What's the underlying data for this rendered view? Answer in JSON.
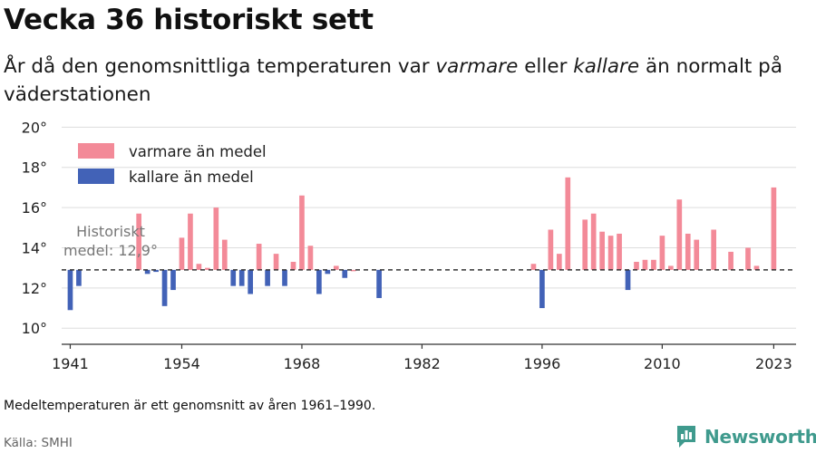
{
  "title": "Vecka 36 historiskt sett",
  "subtitle": {
    "part1": "År då den genomsnittliga temperaturen var ",
    "warm_word": "varmare",
    "part2": " eller ",
    "cold_word": "kallare",
    "part3": " än normalt på väderstationen"
  },
  "footnote": "Medeltemperaturen är ett genomsnitt av åren 1961–1990.",
  "source": "Källa: SMHI",
  "brand": "Newsworthy",
  "colors": {
    "warm": "#f38a98",
    "cold": "#4262b7",
    "reference": "#333333",
    "grid": "#dddddd"
  },
  "chart_data": {
    "type": "bar",
    "baseline": 12.9,
    "reference_label": [
      "Historiskt",
      "medel: 12,9°"
    ],
    "ylim": [
      9.2,
      20.6
    ],
    "yticks": [
      10,
      12,
      14,
      16,
      18,
      20
    ],
    "ytick_labels": [
      "10°",
      "12°",
      "14°",
      "16°",
      "18°",
      "20°"
    ],
    "xlim": [
      1940.0,
      2025.6
    ],
    "xticks": [
      1941,
      1954,
      1968,
      1982,
      1996,
      2010,
      2023
    ],
    "xtick_labels": [
      "1941",
      "1954",
      "1968",
      "1982",
      "1996",
      "2010",
      "2023"
    ],
    "grid": true,
    "legend_position": "top-left",
    "legend": [
      {
        "label": "varmare än medel",
        "color": "#f38a98"
      },
      {
        "label": "kallare än medel",
        "color": "#4262b7"
      }
    ],
    "x": [
      1941,
      1942,
      1949,
      1950,
      1951,
      1952,
      1953,
      1954,
      1955,
      1956,
      1957,
      1958,
      1959,
      1960,
      1961,
      1962,
      1963,
      1964,
      1965,
      1966,
      1967,
      1968,
      1969,
      1970,
      1971,
      1972,
      1973,
      1974,
      1977,
      1995,
      1996,
      1997,
      1998,
      1999,
      2001,
      2002,
      2003,
      2004,
      2005,
      2006,
      2007,
      2008,
      2009,
      2010,
      2011,
      2012,
      2013,
      2014,
      2016,
      2018,
      2020,
      2021,
      2023
    ],
    "values": [
      10.9,
      12.1,
      15.7,
      12.7,
      12.8,
      11.1,
      11.9,
      14.5,
      15.7,
      13.2,
      13.0,
      16.0,
      14.4,
      12.1,
      12.1,
      11.7,
      14.2,
      12.1,
      13.7,
      12.1,
      13.3,
      16.6,
      14.1,
      11.7,
      12.7,
      13.1,
      12.5,
      12.9,
      11.5,
      13.2,
      11.0,
      14.9,
      13.7,
      17.5,
      15.4,
      15.7,
      14.8,
      14.6,
      14.7,
      11.9,
      13.3,
      13.4,
      13.4,
      14.6,
      13.1,
      16.4,
      14.7,
      14.4,
      14.9,
      13.8,
      14.0,
      13.1,
      17.0
    ]
  }
}
